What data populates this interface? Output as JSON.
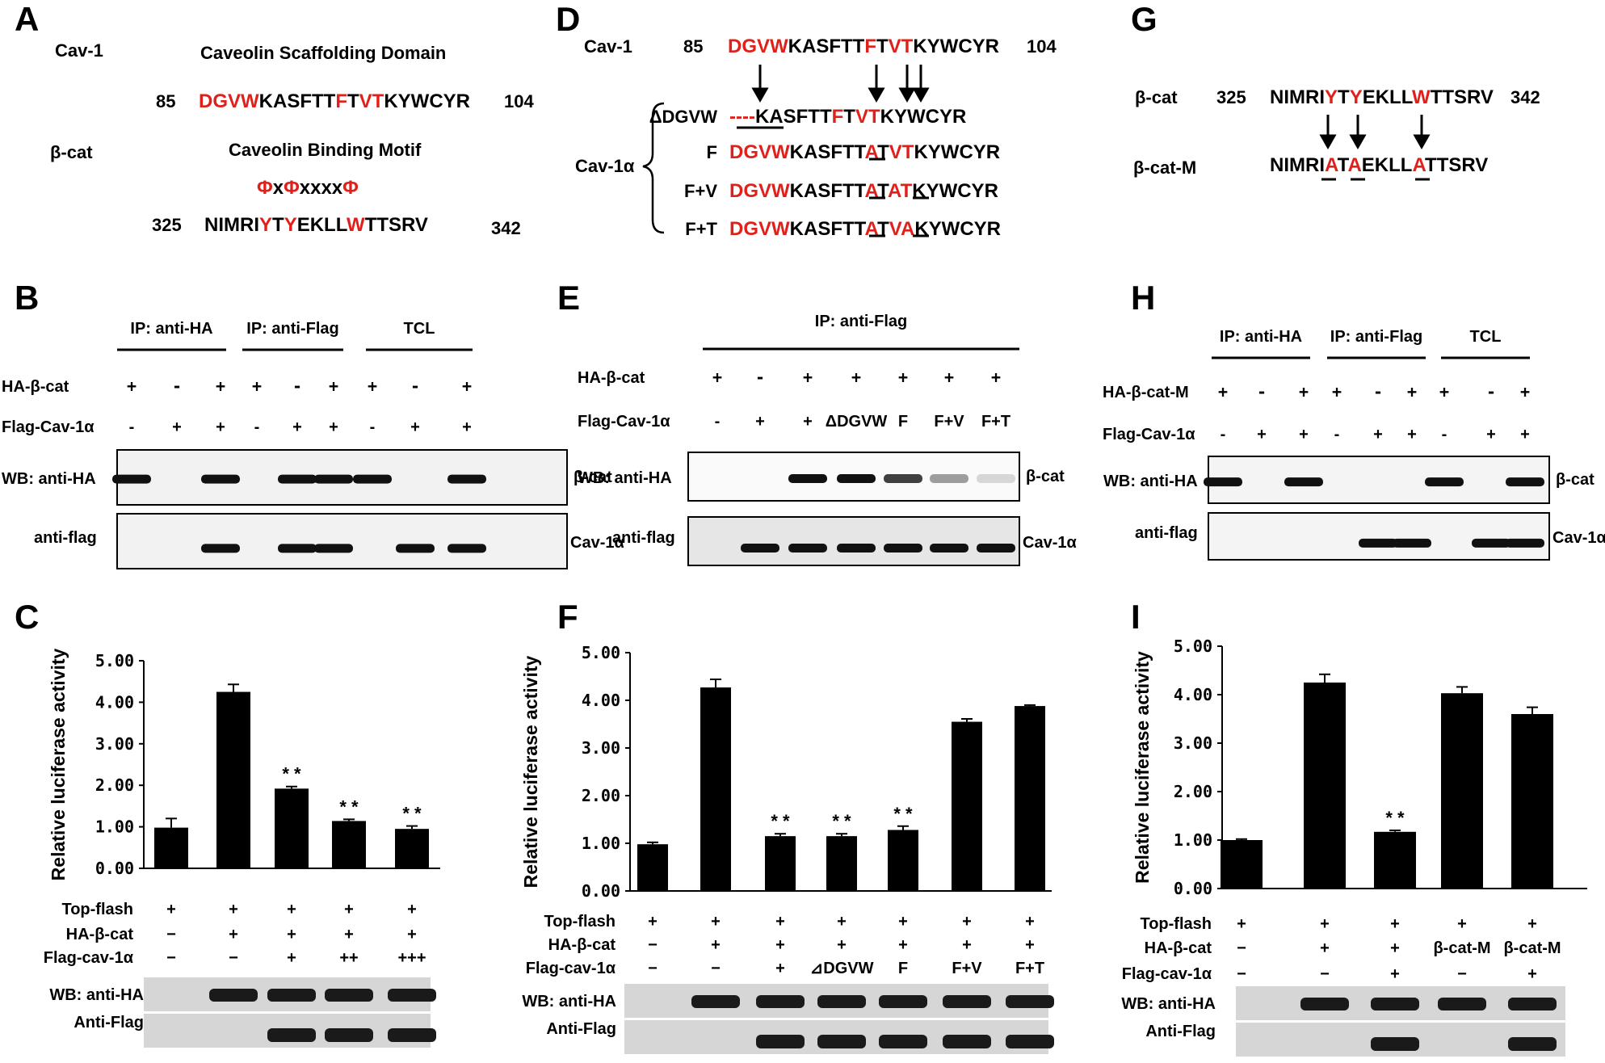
{
  "panels": {
    "A": {
      "letter": "A",
      "cav1_name": "Cav-1",
      "csd_title": "Caveolin Scaffolding Domain",
      "cav1_start": "85",
      "cav1_end": "104",
      "cav1_seq": [
        [
          "DGVW",
          "r"
        ],
        [
          "KASFTT",
          "k"
        ],
        [
          "F",
          "r"
        ],
        [
          "T",
          "k"
        ],
        [
          "VT",
          "r"
        ],
        [
          "KYWCYR",
          "k"
        ]
      ],
      "bcat_name": "β-cat",
      "cbm_title": "Caveolin Binding Motif",
      "motif": [
        [
          "Φ",
          "r"
        ],
        [
          "x",
          "k"
        ],
        [
          "Φ",
          "r"
        ],
        [
          "xxxx",
          "k"
        ],
        [
          "Φ",
          "r"
        ]
      ],
      "bcat_start": "325",
      "bcat_end": "342",
      "bcat_seq": [
        [
          "NIMRI",
          "k"
        ],
        [
          "Y",
          "r"
        ],
        [
          "T",
          "k"
        ],
        [
          "Y",
          "r"
        ],
        [
          "EKLL",
          "k"
        ],
        [
          "W",
          "r"
        ],
        [
          "TTSRV",
          "k"
        ]
      ]
    },
    "D": {
      "letter": "D",
      "cav1_name": "Cav-1",
      "cav1_start": "85",
      "cav1_end": "104",
      "cav1_seq": [
        [
          "DGVW",
          "r"
        ],
        [
          "KASFTT",
          "k"
        ],
        [
          "F",
          "r"
        ],
        [
          "T",
          "k"
        ],
        [
          "VT",
          "r"
        ],
        [
          "KYWCYR",
          "k"
        ]
      ],
      "group_label": "Cav-1α",
      "mutants": [
        {
          "name": "ΔDGVW",
          "seq": [
            [
              "----",
              "r"
            ],
            [
              "KASFTT",
              "k"
            ],
            [
              "F",
              "r"
            ],
            [
              "T",
              "k"
            ],
            [
              "VT",
              "r"
            ],
            [
              "KYWCYR",
              "k"
            ]
          ]
        },
        {
          "name": "F",
          "seq": [
            [
              "DGVW",
              "r"
            ],
            [
              "KASFTT",
              "k"
            ],
            [
              "A",
              "r"
            ],
            [
              "T",
              "k"
            ],
            [
              "VT",
              "r"
            ],
            [
              "KYWCYR",
              "k"
            ]
          ]
        },
        {
          "name": "F+V",
          "seq": [
            [
              "DGVW",
              "r"
            ],
            [
              "KASFTT",
              "k"
            ],
            [
              "A",
              "r"
            ],
            [
              "T",
              "k"
            ],
            [
              "A",
              "r"
            ],
            [
              "T",
              "r"
            ],
            [
              "KYWCYR",
              "k"
            ]
          ]
        },
        {
          "name": "F+T",
          "seq": [
            [
              "DGVW",
              "r"
            ],
            [
              "KASFTT",
              "k"
            ],
            [
              "A",
              "r"
            ],
            [
              "T",
              "k"
            ],
            [
              "VA",
              "r"
            ],
            [
              "KYWCYR",
              "k"
            ]
          ]
        }
      ]
    },
    "G": {
      "letter": "G",
      "bcat_name": "β-cat",
      "bcat_start": "325",
      "bcat_end": "342",
      "bcat_seq": [
        [
          "NIMRI",
          "k"
        ],
        [
          "Y",
          "r"
        ],
        [
          "T",
          "k"
        ],
        [
          "Y",
          "r"
        ],
        [
          "EKLL",
          "k"
        ],
        [
          "W",
          "r"
        ],
        [
          "TTSRV",
          "k"
        ]
      ],
      "mut_name": "β-cat-M",
      "mut_seq": [
        [
          "NIMRI",
          "k"
        ],
        [
          "A",
          "r"
        ],
        [
          "T",
          "k"
        ],
        [
          "A",
          "r"
        ],
        [
          "EKLL",
          "k"
        ],
        [
          "A",
          "r"
        ],
        [
          "TTSRV",
          "k"
        ]
      ]
    },
    "B": {
      "letter": "B",
      "ip_headers": [
        "IP: anti-HA",
        "IP: anti-Flag",
        "TCL"
      ],
      "row1_label": "HA-β-cat",
      "row1": [
        "+",
        "-",
        "+",
        "+",
        "-",
        "+",
        "+",
        "-",
        "+"
      ],
      "row2_label": "Flag-Cav-1α",
      "row2": [
        "-",
        "+",
        "+",
        "-",
        "+",
        "+",
        "-",
        "+",
        "+"
      ],
      "wb1_label": "WB: anti-HA",
      "wb2_label": "anti-flag",
      "band1_label": "β-cat",
      "band2_label": "Cav-1α"
    },
    "E": {
      "letter": "E",
      "ip_header": "IP: anti-Flag",
      "row1_label": "HA-β-cat",
      "row1": [
        "+",
        "-",
        "+",
        "+",
        "+",
        "+",
        "+"
      ],
      "row2_label": "Flag-Cav-1α",
      "row2": [
        "-",
        "+",
        "+",
        "ΔDGVW",
        "F",
        "F+V",
        "F+T"
      ],
      "wb1_label": "WB: anti-HA",
      "wb2_label": "anti-flag",
      "band1_label": "β-cat",
      "band2_label": "Cav-1α"
    },
    "H": {
      "letter": "H",
      "ip_headers": [
        "IP: anti-HA",
        "IP: anti-Flag",
        "TCL"
      ],
      "row1_label": "HA-β-cat-M",
      "row1": [
        "+",
        "-",
        "+",
        "+",
        "-",
        "+",
        "+",
        "-",
        "+"
      ],
      "row2_label": "Flag-Cav-1α",
      "row2": [
        "-",
        "+",
        "+",
        "-",
        "+",
        "+",
        "-",
        "+",
        "+"
      ],
      "wb1_label": "WB: anti-HA",
      "wb2_label": "anti-flag",
      "band1_label": "β-cat",
      "band2_label": "Cav-1α"
    },
    "C": {
      "letter": "C",
      "conditions": {
        "labels": [
          "Top-flash",
          "HA-β-cat",
          "Flag-cav-1α"
        ],
        "rows": [
          [
            "+",
            "+",
            "+",
            "+",
            "+"
          ],
          [
            "−",
            "+",
            "+",
            "+",
            "+"
          ],
          [
            "−",
            "−",
            "+",
            "++",
            "+++"
          ]
        ]
      },
      "wb_labels": [
        "WB: anti-HA",
        "Anti-Flag"
      ]
    },
    "F": {
      "letter": "F",
      "conditions": {
        "labels": [
          "Top-flash",
          "HA-β-cat",
          "Flag-cav-1α"
        ],
        "rows": [
          [
            "+",
            "+",
            "+",
            "+",
            "+",
            "+",
            "+"
          ],
          [
            "−",
            "+",
            "+",
            "+",
            "+",
            "+",
            "+"
          ],
          [
            "−",
            "−",
            "+",
            "⊿DGVW",
            "F",
            "F+V",
            "F+T"
          ]
        ]
      },
      "wb_labels": [
        "WB: anti-HA",
        "Anti-Flag"
      ]
    },
    "I": {
      "letter": "I",
      "conditions": {
        "labels": [
          "Top-flash",
          "HA-β-cat",
          "Flag-cav-1α"
        ],
        "rows": [
          [
            "+",
            "+",
            "+",
            "+",
            "+"
          ],
          [
            "−",
            "+",
            "+",
            "β-cat-M",
            "β-cat-M"
          ],
          [
            "−",
            "−",
            "+",
            "−",
            "+"
          ]
        ]
      },
      "wb_labels": [
        "WB: anti-HA",
        "Anti-Flag"
      ]
    }
  },
  "chart_data": [
    {
      "type": "bar",
      "panel": "C",
      "ylabel": "Relative luciferase activity",
      "ylim": [
        0,
        5
      ],
      "yticks": [
        "0.00",
        "1.00",
        "2.00",
        "3.00",
        "4.00",
        "5.00"
      ],
      "series": [
        {
          "values": [
            0.98,
            4.25,
            1.92,
            1.14,
            0.95
          ],
          "errors": [
            0.22,
            0.18,
            0.05,
            0.04,
            0.07
          ]
        }
      ],
      "annotations": [
        "",
        "",
        "**",
        "**",
        "**"
      ]
    },
    {
      "type": "bar",
      "panel": "F",
      "ylabel": "Relative luciferase activity",
      "ylim": [
        0,
        5
      ],
      "yticks": [
        "0.00",
        "1.00",
        "2.00",
        "3.00",
        "4.00",
        "5.00"
      ],
      "series": [
        {
          "values": [
            0.98,
            4.27,
            1.15,
            1.15,
            1.28,
            3.55,
            3.88
          ],
          "errors": [
            0.04,
            0.17,
            0.05,
            0.05,
            0.08,
            0.06,
            0.02
          ]
        }
      ],
      "annotations": [
        "",
        "",
        "**",
        "**",
        "**",
        "",
        ""
      ]
    },
    {
      "type": "bar",
      "panel": "I",
      "ylabel": "Relative luciferase activity",
      "ylim": [
        0,
        5
      ],
      "yticks": [
        "0.00",
        "1.00",
        "2.00",
        "3.00",
        "4.00",
        "5.00"
      ],
      "series": [
        {
          "values": [
            1.0,
            4.25,
            1.17,
            4.03,
            3.6
          ],
          "errors": [
            0.02,
            0.17,
            0.03,
            0.13,
            0.14
          ]
        }
      ],
      "annotations": [
        "",
        "",
        "**",
        "",
        ""
      ]
    }
  ]
}
